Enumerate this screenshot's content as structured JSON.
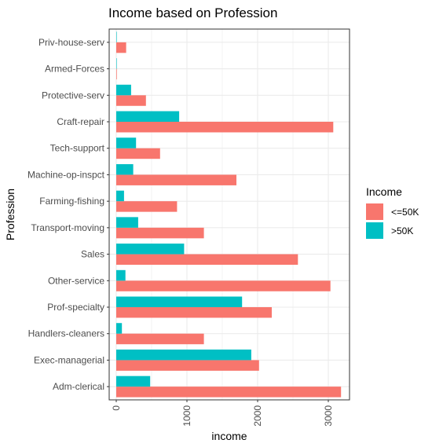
{
  "chart_data": {
    "type": "bar",
    "orientation": "horizontal",
    "title": "Income based on Profession",
    "xlabel": "income",
    "ylabel": "Profession",
    "xlim": [
      -100,
      3300
    ],
    "x_ticks": [
      0,
      1000,
      2000,
      3000
    ],
    "x_tick_labels": [
      "0",
      "1000",
      "2000",
      "3000"
    ],
    "grid": true,
    "categories": [
      "Adm-clerical",
      "Exec-managerial",
      "Handlers-cleaners",
      "Prof-specialty",
      "Other-service",
      "Sales",
      "Transport-moving",
      "Farming-fishing",
      "Machine-op-inspct",
      "Tech-support",
      "Craft-repair",
      "Protective-serv",
      "Armed-Forces",
      "Priv-house-serv"
    ],
    "series": [
      {
        "name": "<=50K",
        "color": "#F8766D",
        "values": [
          3180,
          2020,
          1240,
          2200,
          3030,
          2570,
          1240,
          860,
          1700,
          620,
          3070,
          420,
          8,
          140
        ]
      },
      {
        "name": ">50K",
        "color": "#00BFC4",
        "values": [
          480,
          1910,
          80,
          1780,
          130,
          960,
          310,
          110,
          240,
          280,
          890,
          210,
          1,
          1
        ]
      }
    ],
    "legend": {
      "title": "Income",
      "position": "right"
    }
  }
}
